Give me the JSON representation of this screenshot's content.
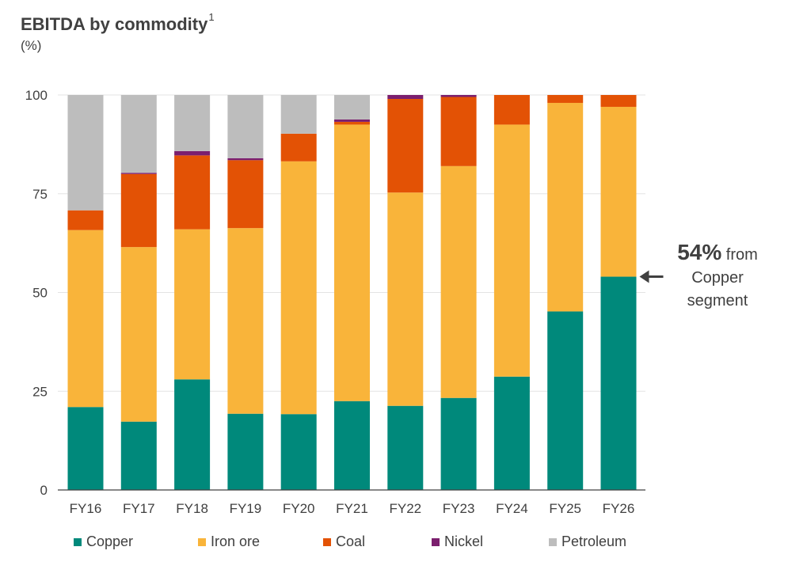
{
  "chart_data": {
    "type": "bar",
    "stacked": true,
    "title": "EBITDA by commodity",
    "title_footnote": "1",
    "unit_label": "(%)",
    "categories": [
      "FY16",
      "FY17",
      "FY18",
      "FY19",
      "FY20",
      "FY21",
      "FY22",
      "FY23",
      "FY24",
      "FY25",
      "FY26"
    ],
    "ylim": [
      0,
      100
    ],
    "yticks": [
      0,
      25,
      50,
      75,
      100
    ],
    "grid": true,
    "legend_position": "bottom",
    "series": [
      {
        "name": "Copper",
        "color": "#00897B",
        "values": [
          21,
          17.3,
          28,
          19.3,
          19.2,
          22.5,
          21.3,
          23.3,
          28.7,
          45.2,
          54
        ]
      },
      {
        "name": "Iron ore",
        "color": "#F9B43A",
        "values": [
          44.8,
          44.2,
          38,
          47,
          64,
          70,
          54,
          58.7,
          63.8,
          52.8,
          43
        ]
      },
      {
        "name": "Coal",
        "color": "#E35205",
        "values": [
          5,
          18.5,
          18.7,
          17.2,
          7,
          0.7,
          23.7,
          17.5,
          7.5,
          2,
          3
        ]
      },
      {
        "name": "Nickel",
        "color": "#7B1F6E",
        "values": [
          0,
          0.3,
          1.1,
          0.5,
          0,
          0.6,
          1,
          0.5,
          0,
          0,
          0
        ]
      },
      {
        "name": "Petroleum",
        "color": "#BDBDBD",
        "values": [
          29.2,
          19.7,
          14.2,
          16,
          9.8,
          6.2,
          0,
          0,
          0,
          0,
          0
        ]
      }
    ],
    "annotation": {
      "target_category": "FY26",
      "target_value": 54,
      "highlight": "54%",
      "text_line1": "from",
      "text_line2": "Copper",
      "text_line3": "segment"
    }
  }
}
